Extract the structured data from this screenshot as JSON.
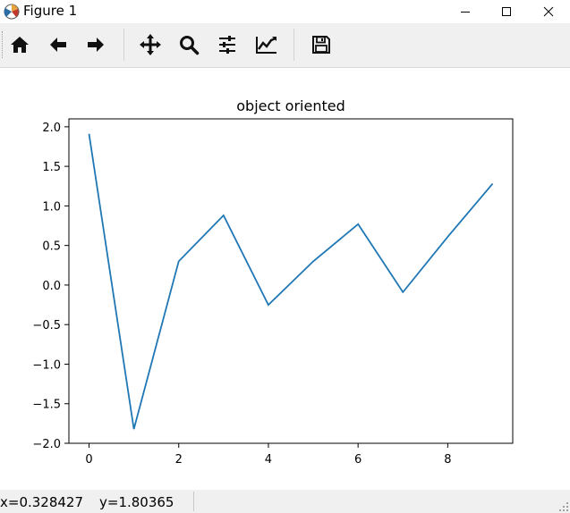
{
  "window": {
    "title": "Figure 1",
    "controls": [
      "minimize",
      "maximize",
      "close"
    ]
  },
  "toolbar": {
    "buttons": [
      {
        "name": "home",
        "icon": "home-icon"
      },
      {
        "name": "back",
        "icon": "arrow-left-icon"
      },
      {
        "name": "forward",
        "icon": "arrow-right-icon"
      },
      {
        "name": "pan",
        "icon": "move-icon"
      },
      {
        "name": "zoom",
        "icon": "search-icon"
      },
      {
        "name": "configure-subplots",
        "icon": "sliders-icon"
      },
      {
        "name": "edit-axis",
        "icon": "line-chart-icon"
      },
      {
        "name": "save",
        "icon": "save-icon"
      }
    ]
  },
  "status": {
    "x_readout": "x=0.328427",
    "y_readout": "y=1.80365"
  },
  "colors": {
    "line": "#1f77b4",
    "toolbar_bg": "#f0f0f0"
  },
  "chart_data": {
    "type": "line",
    "title": "object oriented",
    "xlabel": "",
    "ylabel": "",
    "x": [
      0,
      1,
      2,
      3,
      4,
      5,
      6,
      7,
      8,
      9
    ],
    "series": [
      {
        "values": [
          1.91,
          -1.82,
          0.3,
          0.88,
          -0.25,
          0.3,
          0.77,
          -0.09,
          0.61,
          1.28
        ]
      }
    ],
    "xlim": [
      -0.45,
      9.45
    ],
    "ylim": [
      -2.0,
      2.1
    ],
    "xticks": [
      0,
      2,
      4,
      6,
      8
    ],
    "yticks": [
      -2.0,
      -1.5,
      -1.0,
      -0.5,
      0.0,
      0.5,
      1.0,
      1.5,
      2.0
    ],
    "xtick_labels": [
      "0",
      "2",
      "4",
      "6",
      "8"
    ],
    "ytick_labels": [
      "−2.0",
      "−1.5",
      "−1.0",
      "−0.5",
      "0.0",
      "0.5",
      "1.0",
      "1.5",
      "2.0"
    ],
    "grid": false
  }
}
